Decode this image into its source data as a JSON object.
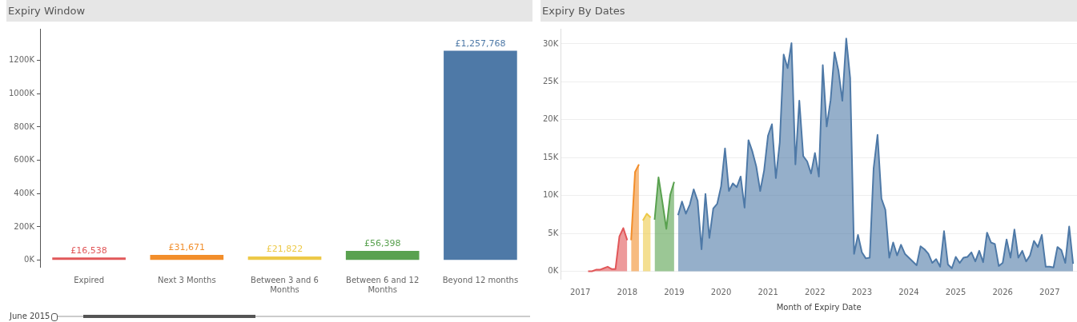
{
  "chart_data": [
    {
      "type": "bar",
      "title": "Expiry Window",
      "categories": [
        "Expired",
        "Next 3 Months",
        "Between 3 and 6 Months",
        "Between 6 and 12 Months",
        "Beyond 12 months"
      ],
      "values": [
        16538,
        31671,
        21822,
        56398,
        1257768
      ],
      "colors": [
        "#e15759",
        "#f28e2b",
        "#edc948",
        "#59a14f",
        "#4e79a7"
      ],
      "value_labels": [
        "£16,538",
        "£31,671",
        "£21,822",
        "£56,398",
        "£1,257,768"
      ],
      "ylim": [
        -40000,
        1390000
      ],
      "yticks": [
        {
          "value": 0,
          "label": "0K"
        },
        {
          "value": 200000,
          "label": "200K"
        },
        {
          "value": 400000,
          "label": "400K"
        },
        {
          "value": 600000,
          "label": "600K"
        },
        {
          "value": 800000,
          "label": "800K"
        },
        {
          "value": 1000000,
          "label": "1000K"
        },
        {
          "value": 1200000,
          "label": "1200K"
        }
      ],
      "grid": false,
      "annotations": [
        "June 2015"
      ]
    },
    {
      "type": "area",
      "title": "Expiry By Dates",
      "xlabel": "Month of Expiry Date",
      "grid": "y",
      "xlim": [
        "2016-08",
        "2027-08"
      ],
      "xticks": [
        "2017",
        "2018",
        "2019",
        "2020",
        "2021",
        "2022",
        "2023",
        "2024",
        "2025",
        "2026",
        "2027"
      ],
      "ylim": [
        -1000,
        32000
      ],
      "yticks": [
        {
          "value": 0,
          "label": "0K"
        },
        {
          "value": 5000,
          "label": "5K"
        },
        {
          "value": 10000,
          "label": "10K"
        },
        {
          "value": 15000,
          "label": "15K"
        },
        {
          "value": 20000,
          "label": "20K"
        },
        {
          "value": 25000,
          "label": "25K"
        },
        {
          "value": 30000,
          "label": "30K"
        }
      ],
      "series": [
        {
          "type": "area",
          "color": "#e15759",
          "x": [
            "2017-03",
            "2017-04",
            "2017-05",
            "2017-06",
            "2017-07",
            "2017-08",
            "2017-09",
            "2017-10",
            "2017-11",
            "2017-12",
            "2018-01"
          ],
          "values": [
            0,
            0,
            200,
            200,
            400,
            600,
            300,
            300,
            4600,
            5700,
            4100
          ]
        },
        {
          "type": "area",
          "color": "#f28e2b",
          "x": [
            "2018-02",
            "2018-03",
            "2018-04"
          ],
          "values": [
            4100,
            13100,
            14100
          ]
        },
        {
          "type": "area",
          "color": "#edc948",
          "x": [
            "2018-05",
            "2018-06",
            "2018-07"
          ],
          "values": [
            6700,
            7600,
            7100
          ]
        },
        {
          "type": "area",
          "color": "#59a14f",
          "x": [
            "2018-08",
            "2018-09",
            "2018-10",
            "2018-11",
            "2018-12",
            "2019-01"
          ],
          "values": [
            6800,
            12400,
            9100,
            5600,
            10100,
            11800
          ]
        },
        {
          "type": "area",
          "color": "#4e79a7",
          "x": [
            "2019-02",
            "2019-03",
            "2019-04",
            "2019-05",
            "2019-06",
            "2019-07",
            "2019-08",
            "2019-09",
            "2019-10",
            "2019-11",
            "2019-12",
            "2020-01",
            "2020-02",
            "2020-03",
            "2020-04",
            "2020-05",
            "2020-06",
            "2020-07",
            "2020-08",
            "2020-09",
            "2020-10",
            "2020-11",
            "2020-12",
            "2021-01",
            "2021-02",
            "2021-03",
            "2021-04",
            "2021-05",
            "2021-06",
            "2021-07",
            "2021-08",
            "2021-09",
            "2021-10",
            "2021-11",
            "2021-12",
            "2022-01",
            "2022-02",
            "2022-03",
            "2022-04",
            "2022-05",
            "2022-06",
            "2022-07",
            "2022-08",
            "2022-09",
            "2022-10",
            "2022-11",
            "2022-12",
            "2023-01",
            "2023-02",
            "2023-03",
            "2023-04",
            "2023-05",
            "2023-06",
            "2023-07",
            "2023-08",
            "2023-09",
            "2023-10",
            "2023-11",
            "2023-12",
            "2024-01",
            "2024-02",
            "2024-03",
            "2024-04",
            "2024-05",
            "2024-06",
            "2024-07",
            "2024-08",
            "2024-09",
            "2024-10",
            "2024-11",
            "2024-12",
            "2025-01",
            "2025-02",
            "2025-03",
            "2025-04",
            "2025-05",
            "2025-06",
            "2025-07",
            "2025-08",
            "2025-09",
            "2025-10",
            "2025-11",
            "2025-12",
            "2026-01",
            "2026-02",
            "2026-03",
            "2026-04",
            "2026-05",
            "2026-06",
            "2026-07",
            "2026-08",
            "2026-09",
            "2026-10",
            "2026-11",
            "2026-12",
            "2027-01",
            "2027-02",
            "2027-03",
            "2027-04",
            "2027-05",
            "2027-06",
            "2027-07"
          ],
          "values": [
            7400,
            9200,
            7600,
            8800,
            10800,
            9300,
            2900,
            10200,
            4400,
            8300,
            8900,
            11200,
            16200,
            10600,
            11600,
            11100,
            12500,
            8400,
            17300,
            15800,
            13800,
            10600,
            13300,
            17900,
            19400,
            12300,
            17000,
            28600,
            26800,
            30100,
            14100,
            22500,
            15200,
            14500,
            12900,
            15600,
            12500,
            27200,
            19100,
            22600,
            28900,
            26500,
            22500,
            30700,
            25500,
            2300,
            4800,
            2500,
            1700,
            1800,
            13600,
            18000,
            9600,
            8100,
            1800,
            3800,
            2100,
            3500,
            2300,
            1800,
            1300,
            800,
            3300,
            2900,
            2300,
            1100,
            1600,
            600,
            5300,
            900,
            400,
            1900,
            1100,
            1800,
            1900,
            2500,
            1300,
            2700,
            1200,
            5100,
            3800,
            3600,
            700,
            1100,
            4200,
            1800,
            5500,
            1800,
            2700,
            1300,
            2100,
            4000,
            3200,
            4800,
            600,
            600,
            500,
            3200,
            2800,
            1100,
            5900,
            1000
          ]
        }
      ]
    }
  ]
}
